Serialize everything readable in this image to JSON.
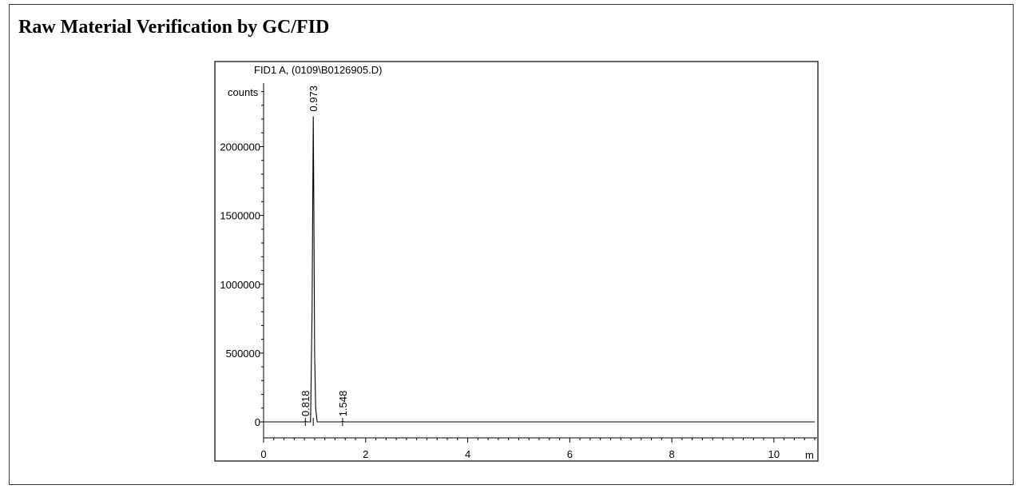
{
  "page": {
    "title": "Raw Material Verification by GC/FID"
  },
  "chart_data": {
    "type": "line",
    "title": "FID1 A,  (0109\\B0126905.D)",
    "ylabel": "counts",
    "xlabel": "m",
    "xlim": [
      0,
      10.8
    ],
    "ylim": [
      -240000,
      2650000
    ],
    "x_ticks": [
      {
        "value": 0,
        "label": "0"
      },
      {
        "value": 2,
        "label": "2"
      },
      {
        "value": 4,
        "label": "4"
      },
      {
        "value": 6,
        "label": "6"
      },
      {
        "value": 8,
        "label": "8"
      },
      {
        "value": 10,
        "label": "10"
      }
    ],
    "y_ticks": [
      {
        "value": 0,
        "label": "0"
      },
      {
        "value": 500000,
        "label": "500000"
      },
      {
        "value": 1000000,
        "label": "1000000"
      },
      {
        "value": 1500000,
        "label": "1500000"
      },
      {
        "value": 2000000,
        "label": "2000000"
      }
    ],
    "peaks": [
      {
        "rt": 0.818,
        "label": "0.818",
        "height": 5000
      },
      {
        "rt": 0.973,
        "label": "0.973",
        "height": 2220000
      },
      {
        "rt": 1.548,
        "label": "1.548",
        "height": 4000
      }
    ],
    "series": [
      {
        "x": [
          0,
          0.8,
          0.818,
          0.84,
          0.92,
          0.95,
          0.973,
          0.985,
          1.0,
          1.02,
          1.05,
          1.52,
          1.548,
          1.58,
          10.8
        ],
        "y": [
          0,
          0,
          5000,
          0,
          0,
          800000,
          2220000,
          1600000,
          500000,
          100000,
          0,
          0,
          4000,
          0,
          0
        ]
      }
    ],
    "grid": false
  }
}
